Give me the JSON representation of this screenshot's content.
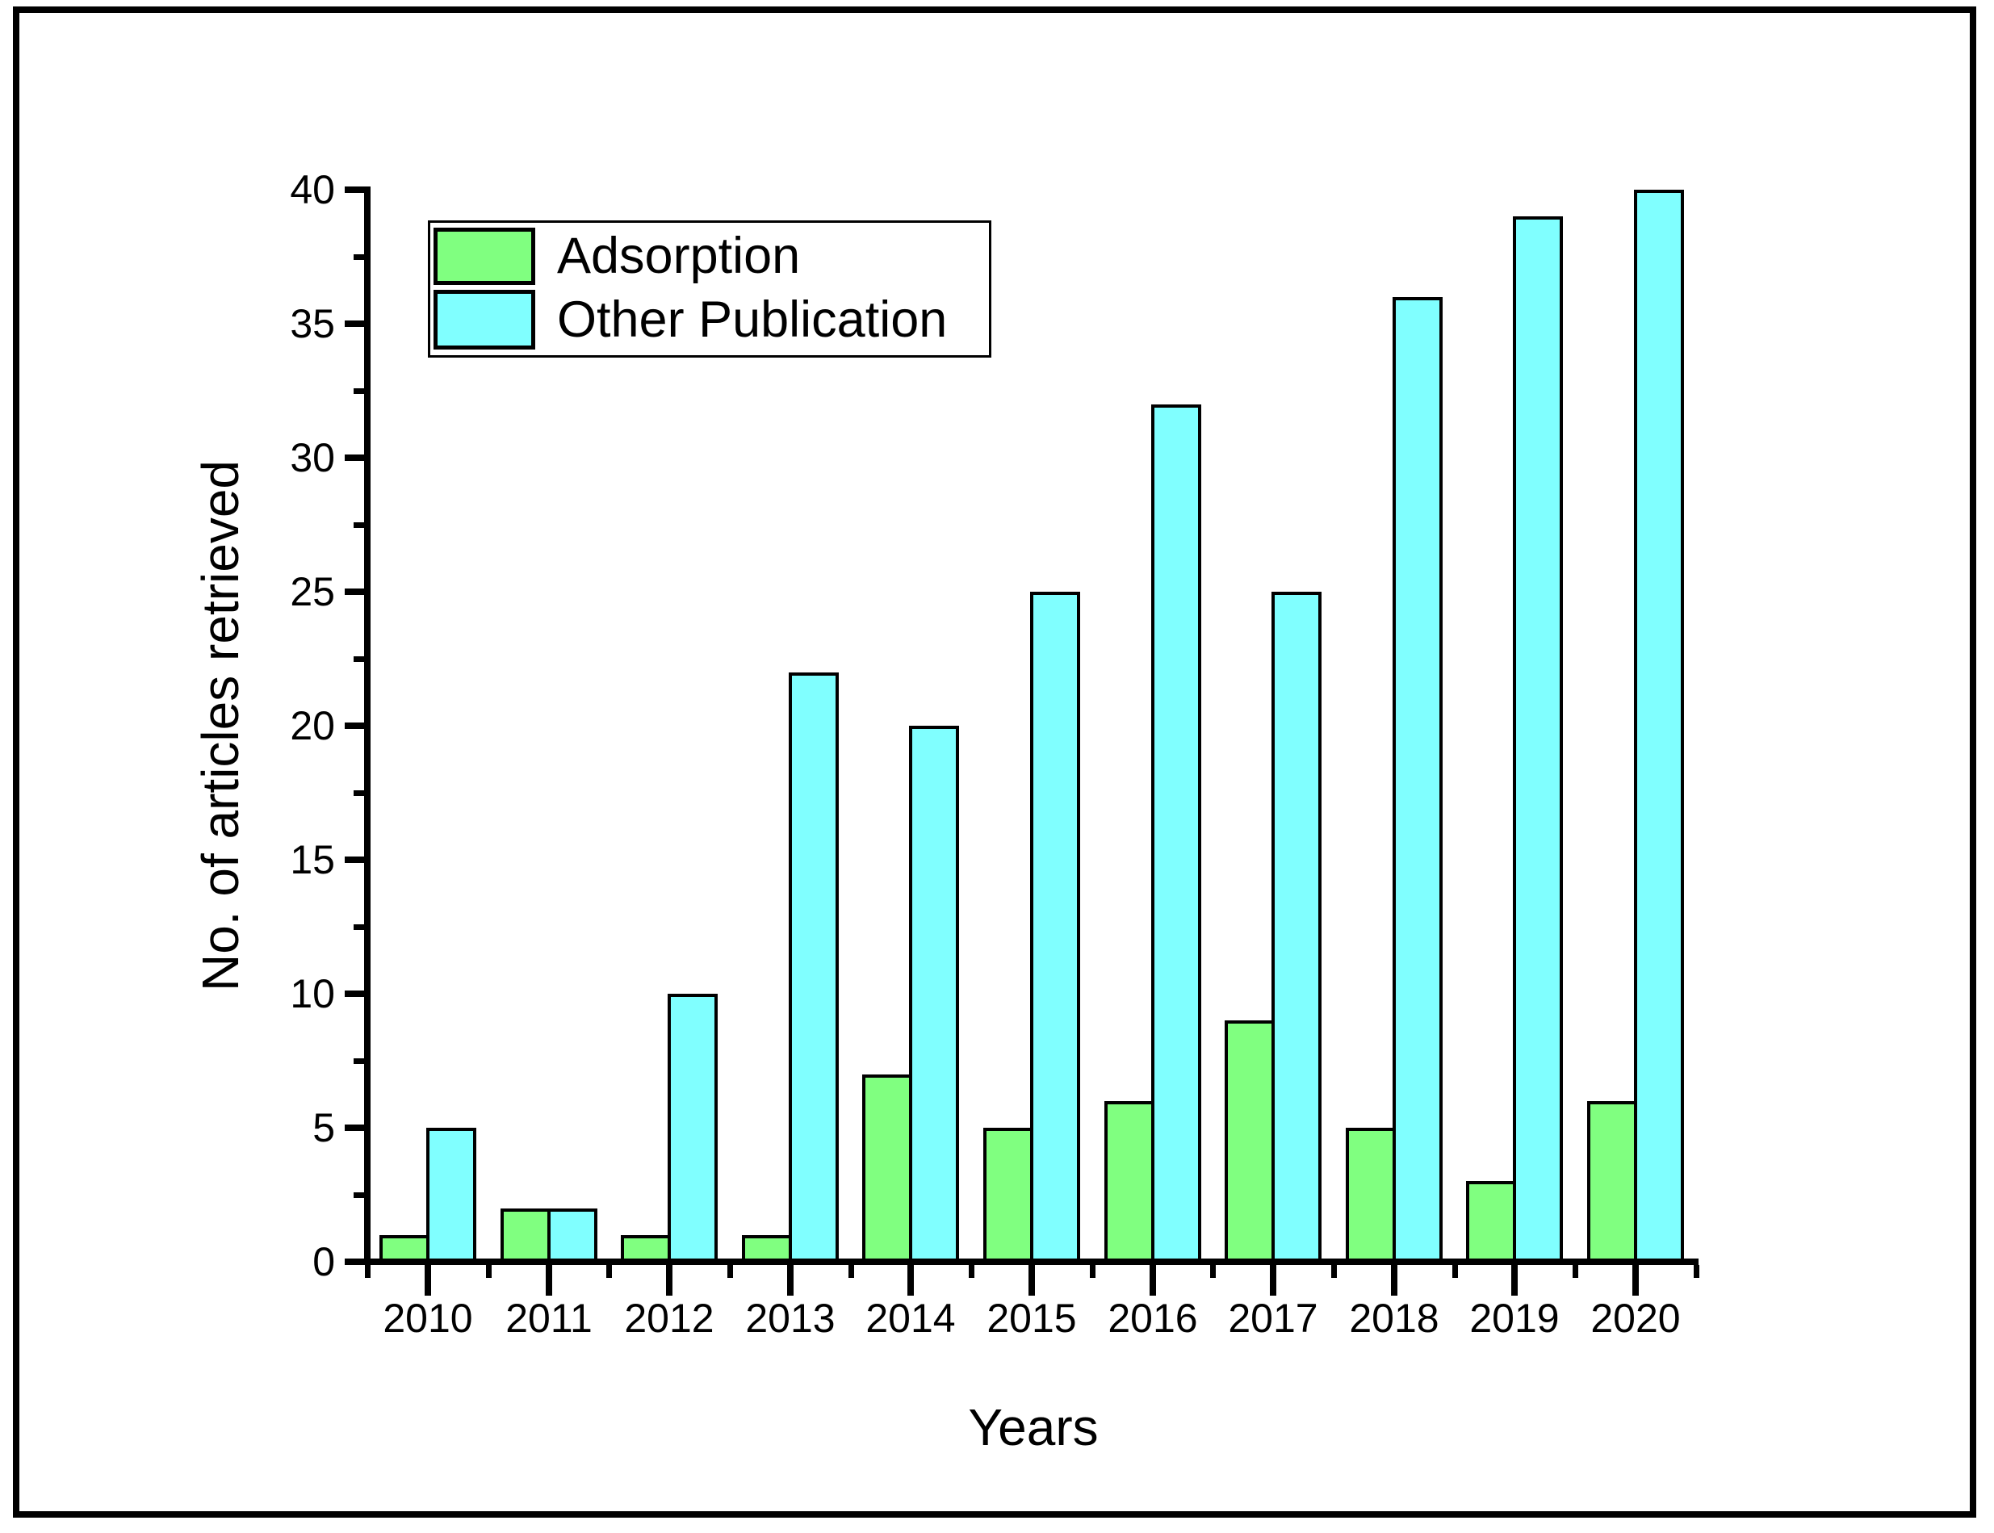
{
  "figure": {
    "background_color": "#ffffff",
    "frame_color": "#000000"
  },
  "chart_data": {
    "type": "bar",
    "title": "",
    "xlabel": "Years",
    "ylabel": "No. of articles retrieved",
    "categories": [
      "2010",
      "2011",
      "2012",
      "2013",
      "2014",
      "2015",
      "2016",
      "2017",
      "2018",
      "2019",
      "2020"
    ],
    "series": [
      {
        "name": "Adsorption",
        "color": "#80FF80",
        "values": [
          1,
          2,
          1,
          1,
          7,
          5,
          6,
          9,
          5,
          3,
          6
        ]
      },
      {
        "name": "Other Publication",
        "color": "#80FFFF",
        "values": [
          5,
          2,
          10,
          22,
          20,
          25,
          32,
          25,
          36,
          39,
          40
        ]
      }
    ],
    "bar_outline_color": "#000000",
    "ylim": [
      0,
      40
    ],
    "y_major_step": 5,
    "y_minor_step": 2.5,
    "y_tick_labels": [
      "0",
      "5",
      "10",
      "15",
      "20",
      "25",
      "30",
      "35",
      "40"
    ],
    "grid": false,
    "legend_position": "top-left",
    "legend": {
      "items": [
        {
          "label": "Adsorption",
          "color": "#80FF80"
        },
        {
          "label": "Other Publication",
          "color": "#80FFFF"
        }
      ]
    }
  }
}
